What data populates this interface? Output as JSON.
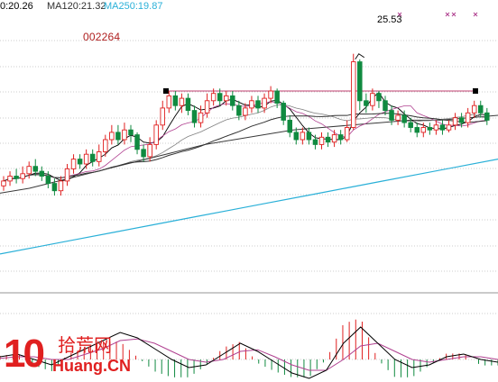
{
  "legend": {
    "ma60": "0:20.26",
    "ma120": "MA120:21.32",
    "ma250": "MA250:19.87"
  },
  "stock_code": "002264",
  "peak_label": "25.53",
  "watermark": {
    "ten": "10",
    "cn": "拾荒网",
    "en": "Huang.CN"
  },
  "colors": {
    "ma60": "#000000",
    "ma120": "#3a3a3a",
    "ma250": "#2ab0d8",
    "up": "#e02020",
    "down": "#108a40",
    "reference_line": "#c04070",
    "macd_dif": "#000000",
    "macd_dea": "#b04090"
  },
  "chart_data": {
    "type": "candlestick",
    "title": "",
    "xlabel": "",
    "ylabel": "",
    "price_range": [
      17.0,
      26.0
    ],
    "peak": 25.53,
    "resistance_level": 24.0,
    "grid": "horizontal dotted",
    "candles": [
      [
        20.1,
        20.3,
        20.5,
        19.9
      ],
      [
        20.3,
        20.5,
        20.7,
        20.1
      ],
      [
        20.5,
        20.4,
        20.8,
        20.2
      ],
      [
        20.4,
        20.6,
        20.9,
        20.2
      ],
      [
        20.6,
        20.9,
        21.1,
        20.4
      ],
      [
        20.9,
        20.7,
        21.2,
        20.5
      ],
      [
        20.7,
        20.5,
        20.9,
        20.3
      ],
      [
        20.5,
        20.2,
        20.7,
        20.0
      ],
      [
        20.2,
        19.9,
        20.4,
        19.7
      ],
      [
        19.9,
        20.3,
        20.5,
        19.7
      ],
      [
        20.3,
        20.8,
        21.0,
        20.1
      ],
      [
        20.8,
        21.2,
        21.4,
        20.6
      ],
      [
        21.2,
        21.0,
        21.4,
        20.8
      ],
      [
        21.0,
        21.4,
        21.6,
        20.8
      ],
      [
        21.4,
        21.1,
        21.6,
        20.9
      ],
      [
        21.1,
        21.5,
        21.8,
        20.9
      ],
      [
        21.5,
        22.0,
        22.2,
        21.3
      ],
      [
        22.0,
        22.3,
        22.6,
        21.8
      ],
      [
        22.3,
        22.0,
        22.6,
        21.8
      ],
      [
        22.0,
        22.4,
        22.7,
        21.8
      ],
      [
        22.4,
        22.2,
        22.6,
        21.9
      ],
      [
        22.2,
        21.6,
        22.3,
        21.4
      ],
      [
        21.6,
        21.3,
        21.8,
        21.1
      ],
      [
        21.3,
        21.8,
        22.1,
        21.1
      ],
      [
        21.8,
        22.6,
        22.8,
        21.6
      ],
      [
        22.6,
        23.3,
        23.6,
        22.4
      ],
      [
        23.3,
        23.8,
        24.0,
        23.1
      ],
      [
        23.8,
        23.4,
        24.0,
        23.2
      ],
      [
        23.4,
        23.7,
        23.9,
        23.1
      ],
      [
        23.7,
        23.2,
        23.9,
        23.0
      ],
      [
        23.2,
        22.7,
        23.4,
        22.5
      ],
      [
        22.7,
        23.1,
        23.4,
        22.5
      ],
      [
        23.1,
        23.6,
        23.9,
        22.9
      ],
      [
        23.6,
        23.9,
        24.1,
        23.4
      ],
      [
        23.9,
        23.6,
        24.1,
        23.4
      ],
      [
        23.6,
        23.8,
        24.0,
        23.4
      ],
      [
        23.8,
        23.4,
        24.0,
        23.2
      ],
      [
        23.4,
        23.0,
        23.6,
        22.8
      ],
      [
        23.0,
        23.3,
        23.5,
        22.8
      ],
      [
        23.3,
        23.6,
        23.8,
        23.1
      ],
      [
        23.6,
        23.3,
        23.8,
        23.1
      ],
      [
        23.3,
        23.7,
        23.9,
        23.1
      ],
      [
        23.7,
        24.0,
        24.2,
        23.5
      ],
      [
        24.0,
        23.5,
        24.1,
        23.3
      ],
      [
        23.5,
        22.8,
        23.6,
        22.6
      ],
      [
        22.8,
        22.3,
        23.0,
        22.1
      ],
      [
        22.3,
        22.0,
        22.5,
        21.8
      ],
      [
        22.0,
        22.3,
        22.5,
        21.8
      ],
      [
        22.3,
        22.0,
        22.5,
        21.8
      ],
      [
        22.0,
        21.8,
        22.2,
        21.6
      ],
      [
        21.8,
        22.1,
        22.3,
        21.6
      ],
      [
        22.1,
        21.9,
        22.3,
        21.7
      ],
      [
        21.9,
        22.2,
        22.4,
        21.7
      ],
      [
        22.2,
        22.0,
        22.4,
        21.8
      ],
      [
        22.0,
        22.5,
        22.8,
        21.9
      ],
      [
        22.5,
        25.2,
        25.53,
        22.4
      ],
      [
        25.2,
        23.6,
        25.3,
        23.2
      ],
      [
        23.6,
        23.4,
        23.9,
        23.1
      ],
      [
        23.4,
        23.9,
        24.1,
        23.2
      ],
      [
        23.9,
        23.6,
        24.0,
        23.3
      ],
      [
        23.6,
        23.2,
        23.8,
        23.0
      ],
      [
        23.2,
        22.8,
        23.4,
        22.6
      ],
      [
        22.8,
        23.0,
        23.2,
        22.6
      ],
      [
        23.0,
        22.7,
        23.2,
        22.5
      ],
      [
        22.7,
        22.5,
        22.9,
        22.3
      ],
      [
        22.5,
        22.3,
        22.7,
        22.1
      ],
      [
        22.3,
        22.5,
        22.7,
        22.1
      ],
      [
        22.5,
        22.4,
        22.7,
        22.2
      ],
      [
        22.4,
        22.6,
        22.8,
        22.2
      ],
      [
        22.6,
        22.4,
        22.8,
        22.2
      ],
      [
        22.4,
        22.6,
        22.8,
        22.3
      ],
      [
        22.6,
        22.9,
        23.1,
        22.4
      ],
      [
        22.9,
        22.7,
        23.1,
        22.5
      ],
      [
        22.7,
        23.1,
        23.3,
        22.5
      ],
      [
        23.1,
        23.4,
        23.6,
        22.9
      ],
      [
        23.4,
        23.1,
        23.6,
        22.9
      ],
      [
        23.1,
        22.8,
        23.3,
        22.6
      ]
    ],
    "ma_series": [
      {
        "name": "MA120",
        "values": [
          19.8,
          20.0,
          20.3,
          20.6,
          20.9,
          21.2,
          21.5,
          21.8,
          22.0,
          22.2,
          22.4,
          22.5,
          22.6,
          22.7,
          22.8,
          22.8,
          22.9,
          23.0
        ]
      },
      {
        "name": "MA250",
        "values": [
          17.3,
          17.6,
          17.9,
          18.2,
          18.5,
          18.8,
          19.1,
          19.4,
          19.7,
          20.0,
          20.3,
          20.6,
          20.9,
          21.2
        ]
      }
    ],
    "macd": {
      "dif": [
        0.05,
        0.1,
        0.0,
        -0.1,
        0.05,
        0.2,
        0.35,
        0.5,
        0.4,
        0.2,
        0.0,
        -0.15,
        -0.1,
        0.1,
        0.3,
        0.15,
        -0.05,
        -0.25,
        -0.35,
        -0.2,
        0.3,
        0.6,
        0.3,
        0.0,
        -0.15,
        -0.1,
        0.05,
        0.1,
        0.0,
        -0.05
      ],
      "dea": [
        0.02,
        0.05,
        0.05,
        0.0,
        0.0,
        0.1,
        0.2,
        0.35,
        0.38,
        0.3,
        0.15,
        0.0,
        -0.05,
        0.0,
        0.15,
        0.18,
        0.05,
        -0.1,
        -0.2,
        -0.2,
        0.0,
        0.25,
        0.3,
        0.15,
        0.0,
        -0.05,
        0.0,
        0.05,
        0.05,
        0.0
      ]
    }
  }
}
